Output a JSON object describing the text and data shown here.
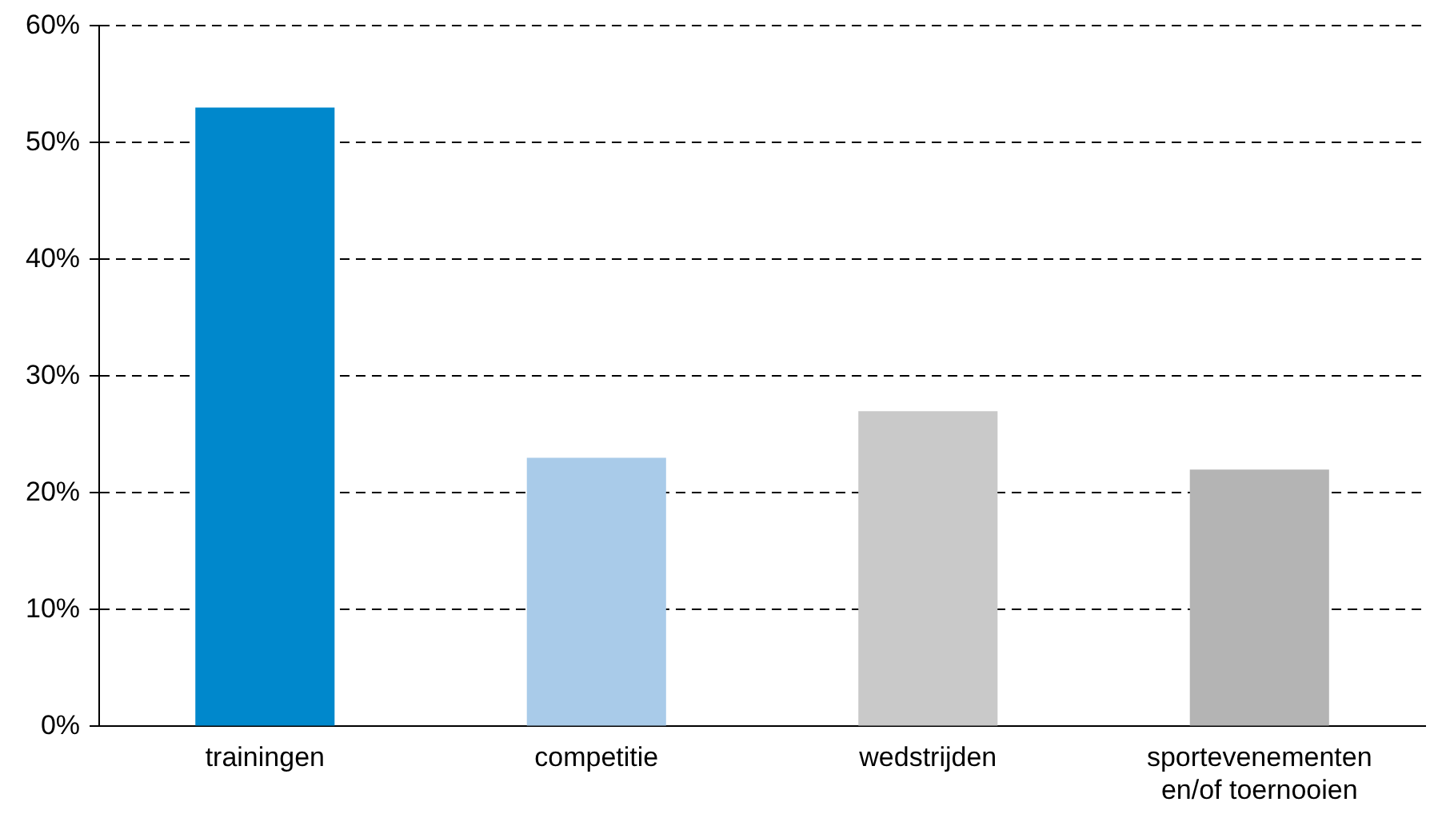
{
  "chart_data": {
    "type": "bar",
    "categories": [
      "trainingen",
      "competitie",
      "wedstrijden",
      "sportevenementen en/of toernooien"
    ],
    "values": [
      53,
      23,
      27,
      22
    ],
    "colors": [
      "#0088cc",
      "#a9cbe9",
      "#c9c9c9",
      "#b4b4b4"
    ],
    "ylim": [
      0,
      60
    ],
    "yticks": [
      {
        "value": 0,
        "label": "0%"
      },
      {
        "value": 10,
        "label": "10%"
      },
      {
        "value": 20,
        "label": "20%"
      },
      {
        "value": 30,
        "label": "30%"
      },
      {
        "value": 40,
        "label": "40%"
      },
      {
        "value": 50,
        "label": "50%"
      },
      {
        "value": 60,
        "label": "60%"
      }
    ],
    "grid": "y",
    "legend": false
  }
}
